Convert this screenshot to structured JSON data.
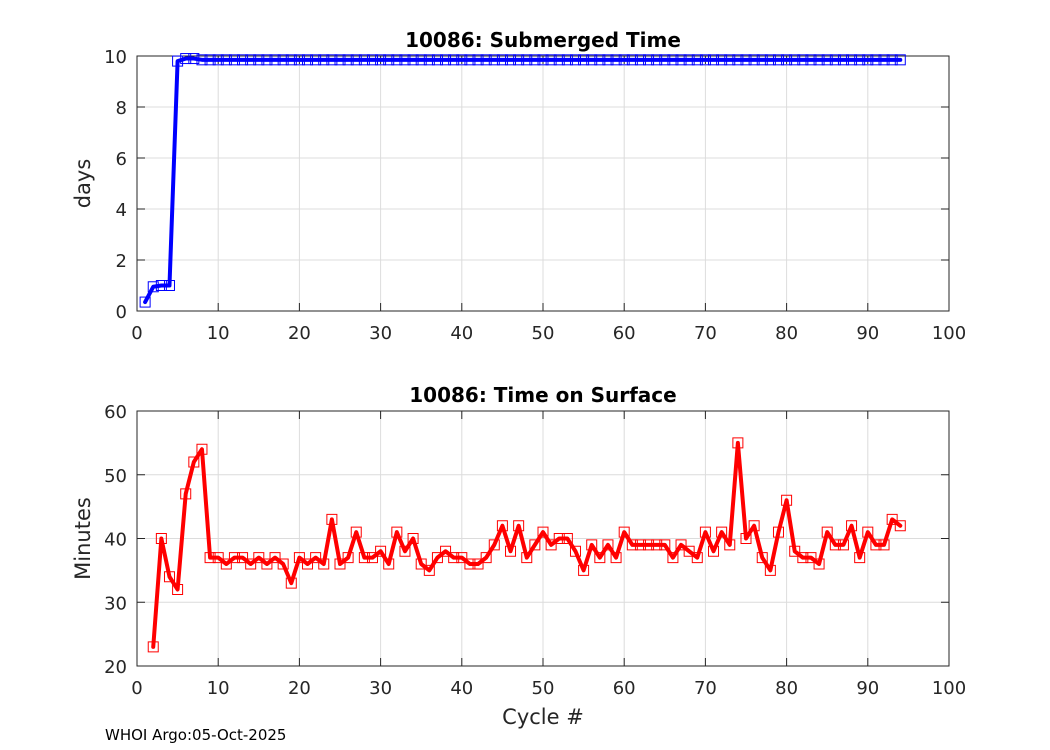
{
  "footer": {
    "note": "WHOI Argo:05-Oct-2025"
  },
  "chart_data": [
    {
      "type": "line",
      "title": "10086: Submerged Time",
      "xlabel": "",
      "ylabel": "days",
      "xlim": [
        0,
        100
      ],
      "ylim": [
        0,
        10
      ],
      "xticks": [
        0,
        10,
        20,
        30,
        40,
        50,
        60,
        70,
        80,
        90,
        100
      ],
      "yticks": [
        0,
        2,
        4,
        6,
        8,
        10
      ],
      "grid": true,
      "color": "#0000ff",
      "marker": "square",
      "series": [
        {
          "x": [
            1,
            2,
            3,
            4,
            5,
            6,
            7,
            8,
            9,
            10,
            11,
            12,
            13,
            14,
            15,
            16,
            17,
            18,
            19,
            20,
            21,
            22,
            23,
            24,
            25,
            26,
            27,
            28,
            29,
            30,
            31,
            32,
            33,
            34,
            35,
            36,
            37,
            38,
            39,
            40,
            41,
            42,
            43,
            44,
            45,
            46,
            47,
            48,
            49,
            50,
            51,
            52,
            53,
            54,
            55,
            56,
            57,
            58,
            59,
            60,
            61,
            62,
            63,
            64,
            65,
            66,
            67,
            68,
            69,
            70,
            71,
            72,
            73,
            74,
            75,
            76,
            77,
            78,
            79,
            80,
            81,
            82,
            83,
            84,
            85,
            86,
            87,
            88,
            89,
            90,
            91,
            92,
            93,
            94
          ],
          "values": [
            0.35,
            0.95,
            1.0,
            1.0,
            9.8,
            9.9,
            9.9,
            9.85,
            9.85,
            9.85,
            9.85,
            9.85,
            9.85,
            9.85,
            9.85,
            9.85,
            9.85,
            9.85,
            9.85,
            9.85,
            9.85,
            9.85,
            9.85,
            9.85,
            9.85,
            9.85,
            9.85,
            9.85,
            9.85,
            9.85,
            9.85,
            9.85,
            9.85,
            9.85,
            9.85,
            9.85,
            9.85,
            9.85,
            9.85,
            9.85,
            9.85,
            9.85,
            9.85,
            9.85,
            9.85,
            9.85,
            9.85,
            9.85,
            9.85,
            9.85,
            9.85,
            9.85,
            9.85,
            9.85,
            9.85,
            9.85,
            9.85,
            9.85,
            9.85,
            9.85,
            9.85,
            9.85,
            9.85,
            9.85,
            9.85,
            9.85,
            9.85,
            9.85,
            9.85,
            9.85,
            9.85,
            9.85,
            9.85,
            9.85,
            9.85,
            9.85,
            9.85,
            9.85,
            9.85,
            9.85,
            9.85,
            9.85,
            9.85,
            9.85,
            9.85,
            9.85,
            9.85,
            9.85,
            9.85,
            9.85,
            9.85,
            9.85,
            9.85,
            9.85
          ]
        }
      ]
    },
    {
      "type": "line",
      "title": "10086: Time on Surface",
      "xlabel": "Cycle #",
      "ylabel": "Minutes",
      "xlim": [
        0,
        100
      ],
      "ylim": [
        20,
        60
      ],
      "xticks": [
        0,
        10,
        20,
        30,
        40,
        50,
        60,
        70,
        80,
        90,
        100
      ],
      "yticks": [
        20,
        30,
        40,
        50,
        60
      ],
      "grid": true,
      "color": "#ff0000",
      "marker": "square",
      "series": [
        {
          "x": [
            2,
            3,
            4,
            5,
            6,
            7,
            8,
            9,
            10,
            11,
            12,
            13,
            14,
            15,
            16,
            17,
            18,
            19,
            20,
            21,
            22,
            23,
            24,
            25,
            26,
            27,
            28,
            29,
            30,
            31,
            32,
            33,
            34,
            35,
            36,
            37,
            38,
            39,
            40,
            41,
            42,
            43,
            44,
            45,
            46,
            47,
            48,
            49,
            50,
            51,
            52,
            53,
            54,
            55,
            56,
            57,
            58,
            59,
            60,
            61,
            62,
            63,
            64,
            65,
            66,
            67,
            68,
            69,
            70,
            71,
            72,
            73,
            74,
            75,
            76,
            77,
            78,
            79,
            80,
            81,
            82,
            83,
            84,
            85,
            86,
            87,
            88,
            89,
            90,
            91,
            92,
            93,
            94
          ],
          "values": [
            23,
            40,
            34,
            32,
            47,
            52,
            54,
            37,
            37,
            36,
            37,
            37,
            36,
            37,
            36,
            37,
            36,
            33,
            37,
            36,
            37,
            36,
            43,
            36,
            37,
            41,
            37,
            37,
            38,
            36,
            41,
            38,
            40,
            36,
            35,
            37,
            38,
            37,
            37,
            36,
            36,
            37,
            39,
            42,
            38,
            42,
            37,
            39,
            41,
            39,
            40,
            40,
            38,
            35,
            39,
            37,
            39,
            37,
            41,
            39,
            39,
            39,
            39,
            39,
            37,
            39,
            38,
            37,
            41,
            38,
            41,
            39,
            55,
            40,
            42,
            37,
            35,
            41,
            46,
            38,
            37,
            37,
            36,
            41,
            39,
            39,
            42,
            37,
            41,
            39,
            39,
            43,
            42
          ]
        }
      ]
    }
  ]
}
